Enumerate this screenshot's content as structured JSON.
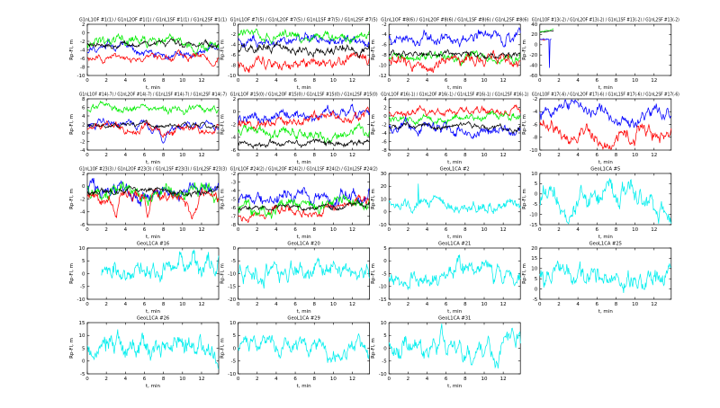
{
  "figure": {
    "background": "#ffffff",
    "xlabel": "t, min",
    "ylabel": "Rp-Fl, m",
    "palette": {
      "blue": "#0000ff",
      "green": "#00ee00",
      "red": "#ff0000",
      "black": "#000000",
      "cyan": "#00eeee",
      "frame": "#000000"
    }
  },
  "chart_data": [
    {
      "type": "line",
      "row": 0,
      "col": 0,
      "title": "G1nL1OF #1(1) / G1nL2OF #1(1) / G1nL1SF #1(1) / G1nL2SF #1(1)",
      "xlabel": "t, min",
      "ylabel": "Rp-Fl, m",
      "xlim": [
        0,
        13.8
      ],
      "xticks": [
        0,
        2,
        4,
        6,
        8,
        10,
        12
      ],
      "ylim": [
        -10,
        2
      ],
      "yticks": [
        -10,
        -8,
        -6,
        -4,
        -2,
        0,
        2
      ],
      "series": [
        {
          "name": "G1nL1OF",
          "color": "blue",
          "mean": -4.4,
          "amp": 1.0,
          "seed": 11
        },
        {
          "name": "G1nL2OF",
          "color": "green",
          "mean": -2.3,
          "amp": 1.2,
          "seed": 12
        },
        {
          "name": "G1nL1SF",
          "color": "red",
          "mean": -5.9,
          "amp": 0.8,
          "seed": 13,
          "dips": [
            [
              13.2,
              1.8,
              0.9
            ]
          ]
        },
        {
          "name": "G1nL2SF",
          "color": "black",
          "mean": -2.4,
          "amp": 0.7,
          "seed": 14
        }
      ]
    },
    {
      "type": "line",
      "row": 0,
      "col": 1,
      "title": "G1nL1OF #7(5) / G1nL2OF #7(5) / G1nL1SF #7(5) / G1nL2SF #7(5)",
      "xlabel": "t, min",
      "ylabel": "Rp-Fl, m",
      "xlim": [
        0,
        13.8
      ],
      "xticks": [
        0,
        2,
        4,
        6,
        8,
        10,
        12
      ],
      "ylim": [
        -10,
        0
      ],
      "yticks": [
        -10,
        -8,
        -6,
        -4,
        -2,
        0
      ],
      "series": [
        {
          "name": "G1nL1OF",
          "color": "blue",
          "mean": -3.2,
          "amp": 1.0,
          "seed": 21
        },
        {
          "name": "G1nL2OF",
          "color": "green",
          "mean": -2.3,
          "amp": 0.9,
          "seed": 22
        },
        {
          "name": "G1nL1SF",
          "color": "red",
          "mean": -7.2,
          "amp": 1.0,
          "seed": 23,
          "dips": [
            [
              1.0,
              1.4,
              1.2
            ]
          ]
        },
        {
          "name": "G1nL2SF",
          "color": "black",
          "mean": -4.6,
          "amp": 0.9,
          "seed": 24
        }
      ]
    },
    {
      "type": "line",
      "row": 0,
      "col": 2,
      "title": "G1nL1OF #8(6) / G1nL2OF #8(6) / G1nL1SF #8(6) / G1nL2SF #8(6)",
      "xlabel": "t, min",
      "ylabel": "Rp-Fl, m",
      "xlim": [
        0,
        13.8
      ],
      "xticks": [
        0,
        2,
        4,
        6,
        8,
        10,
        12
      ],
      "ylim": [
        -12,
        -2
      ],
      "yticks": [
        -12,
        -10,
        -8,
        -6,
        -4,
        -2
      ],
      "series": [
        {
          "name": "G1nL1OF",
          "color": "blue",
          "mean": -4.6,
          "amp": 1.2,
          "seed": 31
        },
        {
          "name": "G1nL2OF",
          "color": "green",
          "mean": -8.6,
          "amp": 0.9,
          "seed": 32
        },
        {
          "name": "G1nL1SF",
          "color": "red",
          "mean": -8.8,
          "amp": 1.1,
          "seed": 33,
          "dips": [
            [
              4.5,
              1.2,
              1.5
            ]
          ]
        },
        {
          "name": "G1nL2SF",
          "color": "black",
          "mean": -8.1,
          "amp": 0.6,
          "seed": 34
        }
      ]
    },
    {
      "type": "line",
      "row": 0,
      "col": 3,
      "title": "G1nL1OF #13(-2) / G1nL2OF #13(-2) / G1nL1SF #13(-2) / G1nL2SF #13(-2)",
      "xlabel": "t, min",
      "ylabel": "Rp-Fl, m",
      "xlim": [
        0,
        13.8
      ],
      "xticks": [
        0,
        2,
        4,
        6,
        8,
        10,
        12
      ],
      "ylim": [
        -60,
        40
      ],
      "yticks": [
        -60,
        -40,
        -20,
        0,
        20,
        40
      ],
      "series": [
        {
          "name": "G1nL2SF",
          "color": "black",
          "mean": 26,
          "amp": 1.0,
          "seed": 44,
          "x0": 0,
          "x1": 1.45,
          "trend": 40
        },
        {
          "name": "G1nL2OF",
          "color": "green",
          "mean": 28,
          "amp": 1.6,
          "seed": 42,
          "x0": 0,
          "x1": 1.45,
          "trend": 55
        },
        {
          "name": "G1nL1SF",
          "color": "red",
          "mean": 10,
          "amp": 1.8,
          "seed": 43,
          "x0": 0,
          "x1": 0.55
        },
        {
          "name": "G1nL1OF",
          "color": "blue",
          "mean": 11,
          "amp": 1.8,
          "seed": 41,
          "x0": 0,
          "x1": 1.2,
          "spike": [
            1.0,
            -45
          ]
        }
      ]
    },
    {
      "type": "line",
      "row": 1,
      "col": 0,
      "title": "G1nL1OF #14(-7) / G1nL2OF #14(-7) / G1nL1SF #14(-7) / G1nL2SF #14(-7)",
      "xlabel": "t, min",
      "ylabel": "Rp-Fl, m",
      "xlim": [
        0,
        13.8
      ],
      "xticks": [
        0,
        2,
        4,
        6,
        8,
        10,
        12
      ],
      "ylim": [
        -4,
        8
      ],
      "yticks": [
        -4,
        -2,
        0,
        2,
        4,
        6,
        8
      ],
      "series": [
        {
          "name": "G1nL2OF",
          "color": "green",
          "mean": 5.4,
          "amp": 0.9,
          "seed": 52
        },
        {
          "name": "G1nL1OF",
          "color": "blue",
          "mean": 1.5,
          "amp": 0.9,
          "seed": 51,
          "dips": [
            [
              8.0,
              3.8,
              0.7
            ]
          ]
        },
        {
          "name": "G1nL1SF",
          "color": "red",
          "mean": 1.2,
          "amp": 0.9,
          "seed": 53,
          "dips": [
            [
              8.0,
              2.2,
              0.6
            ]
          ]
        },
        {
          "name": "G1nL2SF",
          "color": "black",
          "mean": 1.7,
          "amp": 0.5,
          "seed": 54
        }
      ]
    },
    {
      "type": "line",
      "row": 1,
      "col": 1,
      "title": "G1nL1OF #15(0) / G1nL2OF #15(0) / G1nL1SF #15(0) / G1nL2SF #15(0)",
      "xlabel": "t, min",
      "ylabel": "Rp-Fl, m",
      "xlim": [
        0,
        13.8
      ],
      "xticks": [
        0,
        2,
        4,
        6,
        8,
        10,
        12
      ],
      "ylim": [
        -6,
        2
      ],
      "yticks": [
        -6,
        -4,
        -2,
        0,
        2
      ],
      "series": [
        {
          "name": "G1nL1OF",
          "color": "blue",
          "mean": -0.7,
          "amp": 0.8,
          "seed": 61,
          "trend": 1.0
        },
        {
          "name": "G1nL1SF",
          "color": "red",
          "mean": -1.5,
          "amp": 0.7,
          "seed": 63,
          "trend": 1.3
        },
        {
          "name": "G1nL2OF",
          "color": "green",
          "mean": -3.4,
          "amp": 0.8,
          "seed": 62
        },
        {
          "name": "G1nL2SF",
          "color": "black",
          "mean": -5.1,
          "amp": 0.5,
          "seed": 64
        }
      ]
    },
    {
      "type": "line",
      "row": 1,
      "col": 2,
      "title": "G1nL1OF #16(-1) / G1nL2OF #16(-1) / G1nL1SF #16(-1) / G1nL2SF #16(-1)",
      "xlabel": "t, min",
      "ylabel": "Rp-Fl, m",
      "xlim": [
        0,
        13.8
      ],
      "xticks": [
        0,
        2,
        4,
        6,
        8,
        10,
        12
      ],
      "ylim": [
        -8,
        4
      ],
      "yticks": [
        -8,
        -6,
        -4,
        -2,
        0,
        2,
        4
      ],
      "series": [
        {
          "name": "G1nL1SF",
          "color": "red",
          "mean": 1.1,
          "amp": 0.9,
          "seed": 73
        },
        {
          "name": "G1nL2OF",
          "color": "green",
          "mean": -0.9,
          "amp": 0.9,
          "seed": 72
        },
        {
          "name": "G1nL1OF",
          "color": "blue",
          "mean": -2.6,
          "amp": 1.3,
          "seed": 71
        },
        {
          "name": "G1nL2SF",
          "color": "black",
          "mean": -2.6,
          "amp": 0.6,
          "seed": 74
        }
      ]
    },
    {
      "type": "line",
      "row": 1,
      "col": 3,
      "title": "G1nL1OF #17(-6) / G1nL2OF #17(-6) / G1nL1SF #17(-6) / G1nL2SF #17(-6)",
      "xlabel": "t, min",
      "ylabel": "Rp-Fl, m",
      "xlim": [
        0,
        13.8
      ],
      "xticks": [
        0,
        2,
        4,
        6,
        8,
        10,
        12
      ],
      "ylim": [
        -10,
        -2
      ],
      "yticks": [
        -10,
        -8,
        -6,
        -4,
        -2
      ],
      "series": [
        {
          "name": "G1nL1OF",
          "color": "blue",
          "mean": -4.4,
          "amp": 1.0,
          "seed": 81
        },
        {
          "name": "G1nL1SF",
          "color": "red",
          "mean": -6.6,
          "amp": 1.1,
          "seed": 83,
          "dips": [
            [
              7.0,
              1.6,
              2.0
            ]
          ]
        }
      ]
    },
    {
      "type": "line",
      "row": 2,
      "col": 0,
      "title": "G1nL1OF #23(3) / G1nL2OF #23(3) / G1nL1SF #23(3) / G1nL2SF #23(3)",
      "xlabel": "t, min",
      "ylabel": "Rp-Fl, m",
      "xlim": [
        0,
        13.8
      ],
      "xticks": [
        0,
        2,
        4,
        6,
        8,
        10,
        12
      ],
      "ylim": [
        -6,
        2
      ],
      "yticks": [
        -6,
        -4,
        -2,
        0,
        2
      ],
      "series": [
        {
          "name": "G1nL1OF",
          "color": "blue",
          "mean": -0.6,
          "amp": 1.2,
          "seed": 91
        },
        {
          "name": "G1nL2OF",
          "color": "green",
          "mean": -0.9,
          "amp": 1.2,
          "seed": 92
        },
        {
          "name": "G1nL1SF",
          "color": "red",
          "mean": -1.7,
          "amp": 0.9,
          "seed": 93,
          "dips": [
            [
              3.0,
              3.0,
              0.8
            ],
            [
              6.3,
              2.4,
              0.8
            ],
            [
              11.0,
              2.0,
              1.4
            ]
          ]
        },
        {
          "name": "G1nL2SF",
          "color": "black",
          "mean": -0.7,
          "amp": 0.45,
          "seed": 94,
          "trend": 1.0
        }
      ]
    },
    {
      "type": "line",
      "row": 2,
      "col": 1,
      "title": "G1nL1OF #24(2) / G1nL2OF #24(2) / G1nL1SF #24(2) / G1nL2SF #24(2)",
      "xlabel": "t, min",
      "ylabel": "Rp-Fl, m",
      "xlim": [
        0,
        13.8
      ],
      "xticks": [
        0,
        2,
        4,
        6,
        8,
        10,
        12
      ],
      "ylim": [
        -8,
        -2
      ],
      "yticks": [
        -8,
        -7,
        -6,
        -5,
        -4,
        -3,
        -2
      ],
      "series": [
        {
          "name": "G1nL1OF",
          "color": "blue",
          "mean": -4.6,
          "amp": 0.8,
          "seed": 101,
          "trend": 1.0
        },
        {
          "name": "G1nL1SF",
          "color": "red",
          "mean": -6.3,
          "amp": 0.5,
          "seed": 103,
          "trend": 1.6
        },
        {
          "name": "G1nL2OF",
          "color": "green",
          "mean": -5.6,
          "amp": 0.8,
          "seed": 102,
          "trend": 0.4
        },
        {
          "name": "G1nL2SF",
          "color": "black",
          "mean": -5.9,
          "amp": 0.3,
          "seed": 104,
          "trend": 0.6
        }
      ]
    },
    {
      "type": "line",
      "row": 2,
      "col": 2,
      "title": "GeoL1CA #2",
      "xlabel": "t, min",
      "ylabel": "Rp-Fl, m",
      "xlim": [
        0,
        13.8
      ],
      "xticks": [
        0,
        2,
        4,
        6,
        8,
        10,
        12
      ],
      "ylim": [
        -10,
        30
      ],
      "yticks": [
        -10,
        0,
        10,
        20,
        30
      ],
      "series": [
        {
          "name": "GeoL1CA",
          "color": "cyan",
          "mean": 7,
          "amp": 4.5,
          "seed": 111,
          "spike": [
            3.05,
            22
          ]
        }
      ]
    },
    {
      "type": "line",
      "row": 2,
      "col": 3,
      "title": "GeoL1CA #5",
      "xlabel": "t, min",
      "ylabel": "Rp-Fl, m",
      "xlim": [
        0,
        13.8
      ],
      "xticks": [
        0,
        2,
        4,
        6,
        8,
        10,
        12
      ],
      "ylim": [
        -15,
        10
      ],
      "yticks": [
        -15,
        -10,
        -5,
        0,
        5,
        10
      ],
      "series": [
        {
          "name": "GeoL1CA",
          "color": "cyan",
          "mean": -3,
          "amp": 5.5,
          "seed": 112
        }
      ]
    },
    {
      "type": "line",
      "row": 3,
      "col": 0,
      "title": "GeoL1CA #16",
      "xlabel": "t, min",
      "ylabel": "Rp-Fl, m",
      "xlim": [
        0,
        13.8
      ],
      "xticks": [
        0,
        2,
        4,
        6,
        8,
        10,
        12
      ],
      "ylim": [
        -10,
        10
      ],
      "yticks": [
        -10,
        -5,
        0,
        5,
        10
      ],
      "series": [
        {
          "name": "GeoL1CA",
          "color": "cyan",
          "mean": 1.5,
          "amp": 4.2,
          "seed": 113,
          "x0": 1.5
        }
      ]
    },
    {
      "type": "line",
      "row": 3,
      "col": 1,
      "title": "GeoL1CA #20",
      "xlabel": "t, min",
      "ylabel": "Rp-Fl, m",
      "xlim": [
        0,
        13.8
      ],
      "xticks": [
        0,
        2,
        4,
        6,
        8,
        10,
        12
      ],
      "ylim": [
        -20,
        0
      ],
      "yticks": [
        -20,
        -15,
        -10,
        -5,
        0
      ],
      "series": [
        {
          "name": "GeoL1CA",
          "color": "cyan",
          "mean": -9,
          "amp": 3.6,
          "seed": 114
        }
      ]
    },
    {
      "type": "line",
      "row": 3,
      "col": 2,
      "title": "GeoL1CA #21",
      "xlabel": "t, min",
      "ylabel": "Rp-Fl, m",
      "xlim": [
        0,
        13.8
      ],
      "xticks": [
        0,
        2,
        4,
        6,
        8,
        10,
        12
      ],
      "ylim": [
        -15,
        5
      ],
      "yticks": [
        -15,
        -10,
        -5,
        0,
        5
      ],
      "series": [
        {
          "name": "GeoL1CA",
          "color": "cyan",
          "mean": -7,
          "amp": 3.6,
          "seed": 115
        }
      ]
    },
    {
      "type": "line",
      "row": 3,
      "col": 3,
      "title": "GeoL1CA #25",
      "xlabel": "t, min",
      "ylabel": "Rp-Fl, m",
      "xlim": [
        0,
        13.8
      ],
      "xticks": [
        0,
        2,
        4,
        6,
        8,
        10,
        12
      ],
      "ylim": [
        -5,
        20
      ],
      "yticks": [
        -5,
        0,
        5,
        10,
        15,
        20
      ],
      "series": [
        {
          "name": "GeoL1CA",
          "color": "cyan",
          "mean": 7.5,
          "amp": 5.0,
          "seed": 116
        }
      ]
    },
    {
      "type": "line",
      "row": 4,
      "col": 0,
      "title": "GeoL1CA #26",
      "xlabel": "t, min",
      "ylabel": "Rp-Fl, m",
      "xlim": [
        0,
        13.8
      ],
      "xticks": [
        0,
        2,
        4,
        6,
        8,
        10,
        12
      ],
      "ylim": [
        -5,
        15
      ],
      "yticks": [
        -5,
        0,
        5,
        10,
        15
      ],
      "series": [
        {
          "name": "GeoL1CA",
          "color": "cyan",
          "mean": 5,
          "amp": 4.2,
          "seed": 117
        }
      ]
    },
    {
      "type": "line",
      "row": 4,
      "col": 1,
      "title": "GeoL1CA #29",
      "xlabel": "t, min",
      "ylabel": "Rp-Fl, m",
      "xlim": [
        0,
        13.8
      ],
      "xticks": [
        0,
        2,
        4,
        6,
        8,
        10,
        12
      ],
      "ylim": [
        -10,
        10
      ],
      "yticks": [
        -10,
        -5,
        0,
        5,
        10
      ],
      "series": [
        {
          "name": "GeoL1CA",
          "color": "cyan",
          "mean": 1,
          "amp": 3.4,
          "seed": 118
        }
      ]
    },
    {
      "type": "line",
      "row": 4,
      "col": 2,
      "title": "GeoL1CA #31",
      "xlabel": "t, min",
      "ylabel": "Rp-Fl, m",
      "xlim": [
        0,
        13.8
      ],
      "xticks": [
        0,
        2,
        4,
        6,
        8,
        10,
        12
      ],
      "ylim": [
        -10,
        10
      ],
      "yticks": [
        -10,
        -5,
        0,
        5,
        10
      ],
      "series": [
        {
          "name": "GeoL1CA",
          "color": "cyan",
          "mean": 0.5,
          "amp": 4.0,
          "seed": 119
        }
      ]
    }
  ]
}
